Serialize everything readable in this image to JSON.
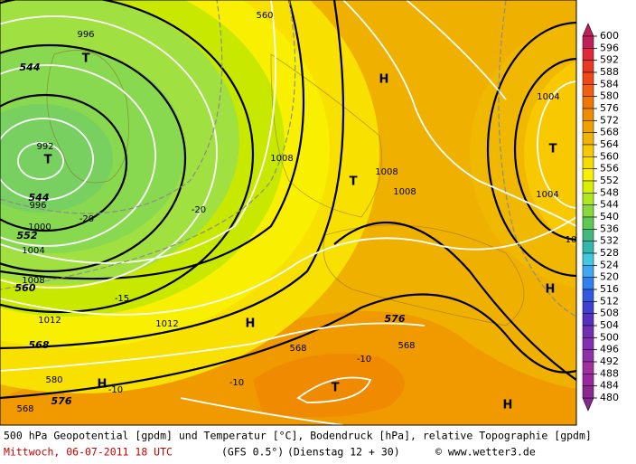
{
  "footer": {
    "line1": "500 hPa Geopotential [gpdm] und Temperatur [°C], Bodendruck [hPa], relative Topographie [gpdm]",
    "date": "Mittwoch, 06-07-2011  18 UTC",
    "model": "(GFS 0.5°)",
    "run": "(Dienstag 12 + 30)",
    "copyright": "© www.wetter3.de"
  },
  "map_labels": [
    "996",
    "T",
    "544",
    "992",
    "T",
    "544",
    "996",
    "1000",
    "552",
    "1004",
    "1008",
    "560",
    "1012",
    "568",
    "576",
    "-20",
    "-20",
    "-15",
    "-10",
    "-10",
    "-10",
    "1012",
    "1008",
    "H",
    "T",
    "1008",
    "1008",
    "H",
    "H",
    "576",
    "568",
    "568",
    "560",
    "T",
    "H",
    "H",
    "T",
    "1004",
    "1004",
    "10",
    "580",
    "568"
  ],
  "colorbar": {
    "levels": [
      600,
      596,
      592,
      588,
      584,
      580,
      576,
      572,
      568,
      564,
      560,
      556,
      552,
      548,
      544,
      540,
      536,
      532,
      528,
      524,
      520,
      516,
      512,
      508,
      504,
      500,
      496,
      492,
      488,
      484,
      480
    ],
    "colors": [
      "#c0205a",
      "#e02838",
      "#e83820",
      "#f04818",
      "#f06010",
      "#f07800",
      "#f08c00",
      "#f0a000",
      "#f0b400",
      "#f8c800",
      "#f8dc00",
      "#f8f000",
      "#d8f000",
      "#b0e820",
      "#88d840",
      "#60c850",
      "#40b880",
      "#30b8b0",
      "#40c8e0",
      "#40a8f0",
      "#3080f0",
      "#3058e0",
      "#4040d0",
      "#5830c0",
      "#7030b0",
      "#8030b0",
      "#9030a8",
      "#a030a0",
      "#9828a0",
      "#882890"
    ]
  }
}
